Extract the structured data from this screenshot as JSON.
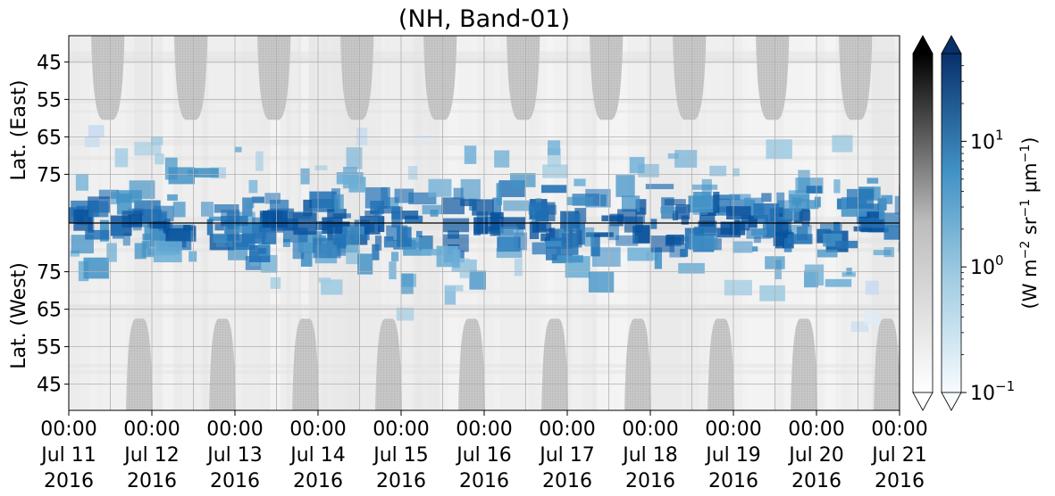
{
  "chart_data": {
    "type": "heatmap",
    "title": "(NH, Band-01)",
    "x_axis": {
      "range": [
        "2016-07-11 00:00",
        "2016-07-21 00:00"
      ],
      "ticks": [
        {
          "time": "00:00",
          "date": "Jul 11",
          "year": "2016"
        },
        {
          "time": "00:00",
          "date": "Jul 12",
          "year": "2016"
        },
        {
          "time": "00:00",
          "date": "Jul 13",
          "year": "2016"
        },
        {
          "time": "00:00",
          "date": "Jul 14",
          "year": "2016"
        },
        {
          "time": "00:00",
          "date": "Jul 15",
          "year": "2016"
        },
        {
          "time": "00:00",
          "date": "Jul 16",
          "year": "2016"
        },
        {
          "time": "00:00",
          "date": "Jul 17",
          "year": "2016"
        },
        {
          "time": "00:00",
          "date": "Jul 18",
          "year": "2016"
        },
        {
          "time": "00:00",
          "date": "Jul 19",
          "year": "2016"
        },
        {
          "time": "00:00",
          "date": "Jul 20",
          "year": "2016"
        },
        {
          "time": "00:00",
          "date": "Jul 21",
          "year": "2016"
        }
      ]
    },
    "panels": [
      {
        "ylabel": "Lat. (East)",
        "ylim": [
          38,
          88
        ],
        "ticks": [
          "45",
          "55",
          "65",
          "75"
        ],
        "direction": "increasing-down"
      },
      {
        "ylabel": "Lat. (West)",
        "ylim": [
          38,
          88
        ],
        "ticks": [
          "75",
          "65",
          "55",
          "45"
        ],
        "direction": "increasing-up"
      }
    ],
    "colorbars": [
      {
        "name": "gray",
        "scale": "log",
        "extend": "both",
        "range": [
          0.1,
          50
        ]
      },
      {
        "name": "blues",
        "scale": "log",
        "extend": "both",
        "range": [
          0.1,
          50
        ],
        "tick_labels": [
          {
            "base": "10",
            "exp": "1",
            "value": 10
          },
          {
            "base": "10",
            "exp": "0",
            "value": 1
          },
          {
            "base": "10",
            "exp": "−1",
            "value": 0.1
          }
        ]
      }
    ],
    "colorbar_label": {
      "prefix": "(W m",
      "e1": "−2",
      "mid1": " sr",
      "e2": "−1",
      "mid2": " μm",
      "e3": "−1",
      "suffix": ")"
    },
    "grid": true,
    "colors": {
      "masked": "#c8c8c8",
      "background": "#eeeeee",
      "blue_dark": "#08306b",
      "blue_light": "#f7fbff"
    }
  }
}
